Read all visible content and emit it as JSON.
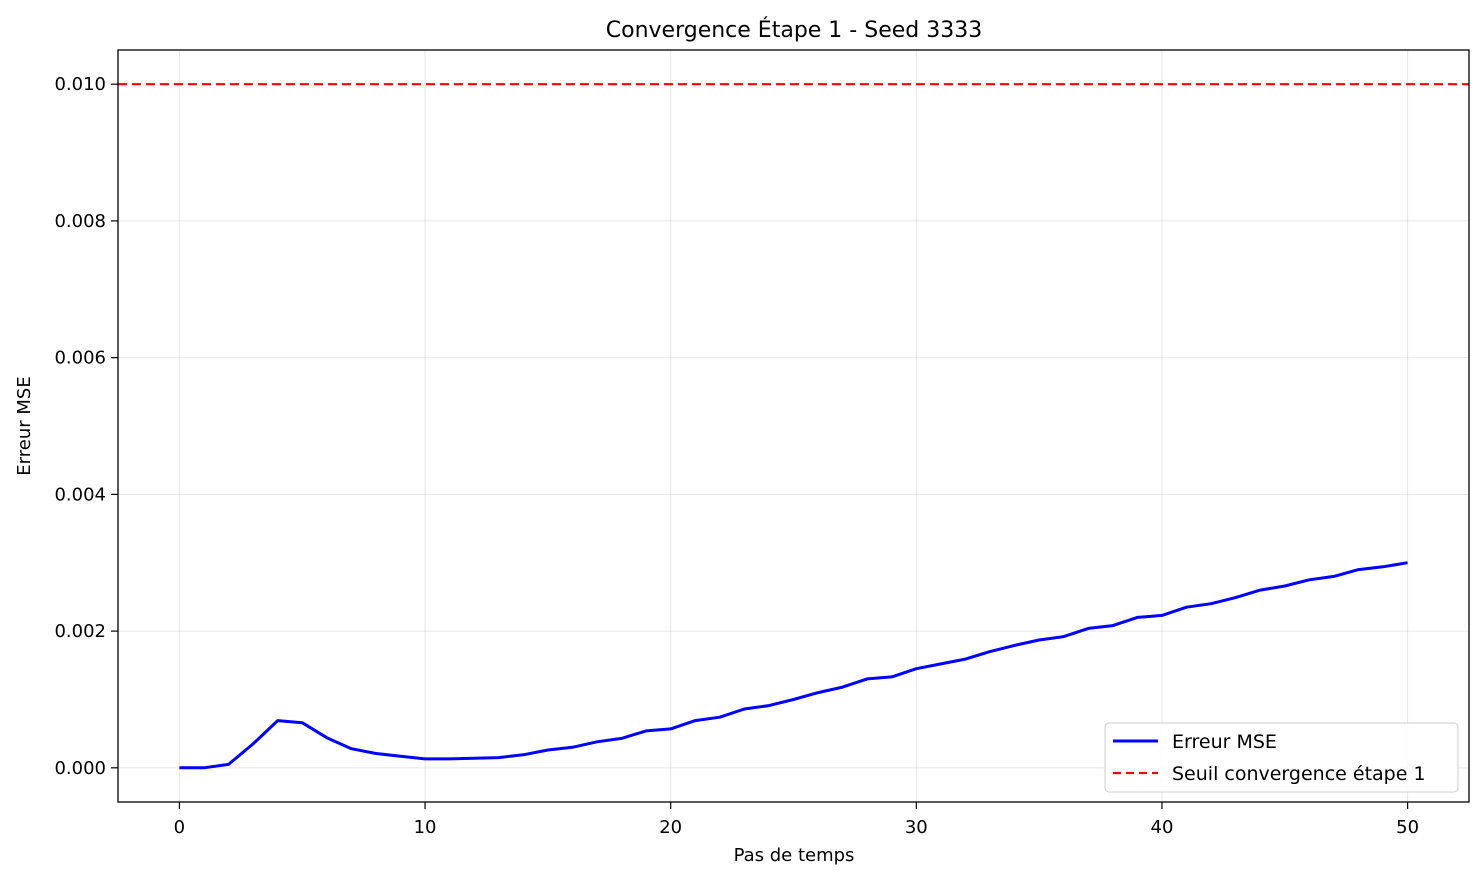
{
  "chart_data": {
    "type": "line",
    "title": "Convergence Étape 1 - Seed 3333",
    "xlabel": "Pas de temps",
    "ylabel": "Erreur MSE",
    "xlim": [
      -2.5,
      52.5
    ],
    "ylim": [
      -0.0005,
      0.0105
    ],
    "xticks": [
      0,
      10,
      20,
      30,
      40,
      50
    ],
    "yticks": [
      0.0,
      0.002,
      0.004,
      0.006,
      0.008,
      0.01
    ],
    "ytick_labels": [
      "0.000",
      "0.002",
      "0.004",
      "0.006",
      "0.008",
      "0.010"
    ],
    "grid": true,
    "legend_position": "lower-right",
    "series": [
      {
        "name": "Erreur MSE",
        "color": "#0000ff",
        "style": "solid",
        "x": [
          0,
          1,
          2,
          3,
          4,
          5,
          6,
          7,
          8,
          9,
          10,
          11,
          12,
          13,
          14,
          15,
          16,
          17,
          18,
          19,
          20,
          21,
          22,
          23,
          24,
          25,
          26,
          27,
          28,
          29,
          30,
          31,
          32,
          33,
          34,
          35,
          36,
          37,
          38,
          39,
          40,
          41,
          42,
          43,
          44,
          45,
          46,
          47,
          48,
          49,
          50
        ],
        "values": [
          0.0,
          0.0,
          5e-05,
          0.00035,
          0.00069,
          0.00066,
          0.00044,
          0.00028,
          0.00021,
          0.00017,
          0.00013,
          0.00013,
          0.00014,
          0.00015,
          0.00019,
          0.00026,
          0.0003,
          0.00038,
          0.00043,
          0.00054,
          0.00057,
          0.00069,
          0.00074,
          0.00086,
          0.00091,
          0.001,
          0.0011,
          0.00118,
          0.0013,
          0.00133,
          0.00145,
          0.00152,
          0.00159,
          0.0017,
          0.00179,
          0.00187,
          0.00192,
          0.00204,
          0.00208,
          0.0022,
          0.00223,
          0.00235,
          0.0024,
          0.00249,
          0.0026,
          0.00266,
          0.00275,
          0.0028,
          0.0029,
          0.00294,
          0.003
        ]
      },
      {
        "name": "Seuil convergence étape 1",
        "color": "#ff0000",
        "style": "dashed",
        "hline": 0.01
      }
    ]
  }
}
